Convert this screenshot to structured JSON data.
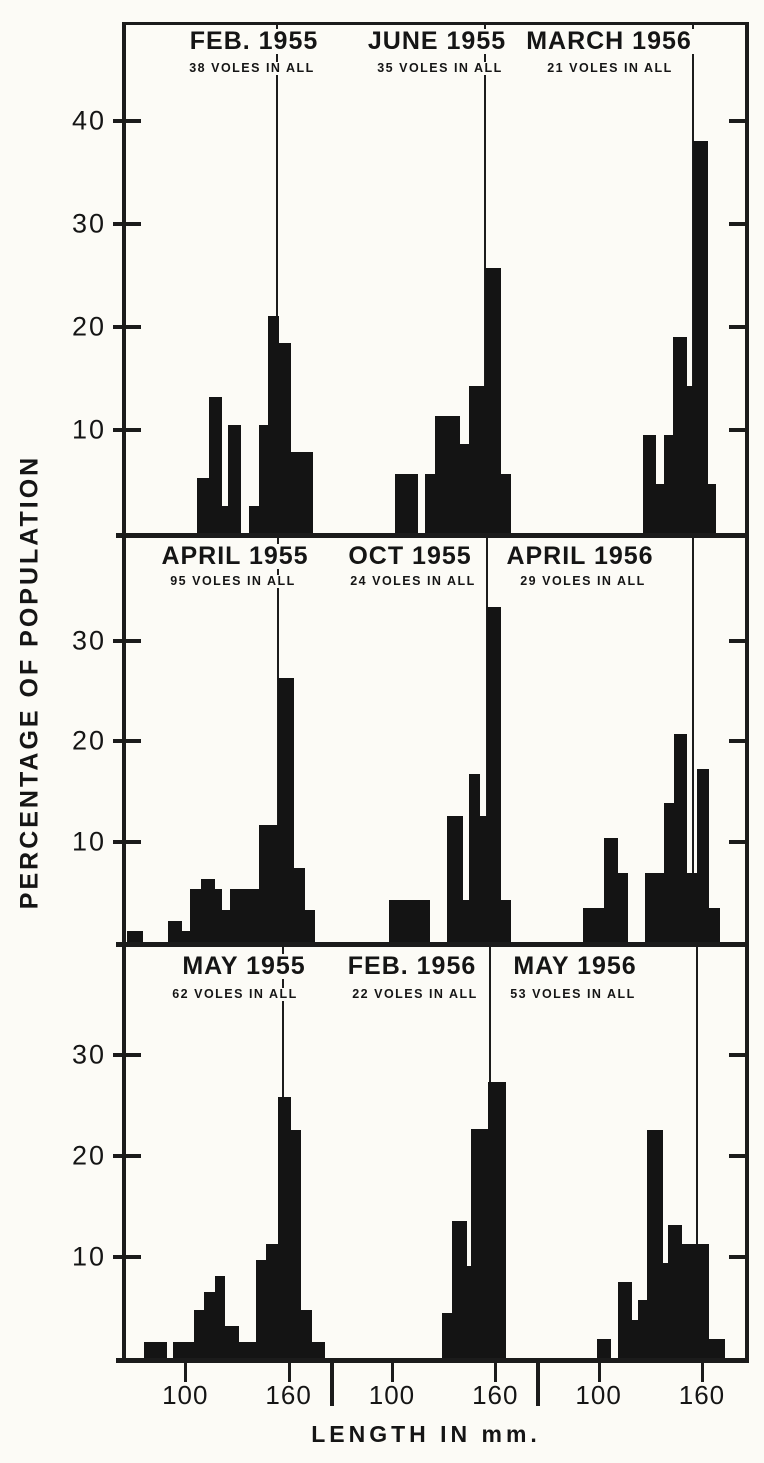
{
  "figure": {
    "paper_color": "#fcfbf6",
    "ink_color": "#161616"
  },
  "chart_data": {
    "type": "bar",
    "subtype": "histogram-grid-3x3",
    "title": "",
    "y_axis": {
      "label": "PERCENTAGE OF POPULATION"
    },
    "x_axis": {
      "label": "LENGTH IN mm.",
      "tick_values_mm": [
        100,
        160
      ],
      "mm_window": [
        65,
        185
      ]
    },
    "grid": "off",
    "legend": "none",
    "rows": [
      {
        "y_ticks": [
          10,
          20,
          30,
          40
        ],
        "ylim": [
          0,
          49.5
        ],
        "panels": [
          {
            "title": "FEB. 1955",
            "subtitle": "38 VOLES IN ALL",
            "n_voles": 38,
            "ref_mm": 153,
            "bars": [
              {
                "mm": [
                  107,
                  114
                ],
                "pct": 5.3
              },
              {
                "mm": [
                  114,
                  121
                ],
                "pct": 13.2
              },
              {
                "mm": [
                  121,
                  125
                ],
                "pct": 2.6
              },
              {
                "mm": [
                  125,
                  132
                ],
                "pct": 10.5
              },
              {
                "mm": [
                  137,
                  143
                ],
                "pct": 2.6
              },
              {
                "mm": [
                  143,
                  148
                ],
                "pct": 10.5
              },
              {
                "mm": [
                  148,
                  154
                ],
                "pct": 21.1
              },
              {
                "mm": [
                  154,
                  161
                ],
                "pct": 18.4
              },
              {
                "mm": [
                  161,
                  174
                ],
                "pct": 7.9
              }
            ]
          },
          {
            "title": "JUNE 1955",
            "subtitle": "35 VOLES IN ALL",
            "n_voles": 35,
            "ref_mm": 154,
            "bars": [
              {
                "mm": [
                  102,
                  115
                ],
                "pct": 5.7
              },
              {
                "mm": [
                  119,
                  125
                ],
                "pct": 5.7
              },
              {
                "mm": [
                  125,
                  139
                ],
                "pct": 11.4
              },
              {
                "mm": [
                  139,
                  145
                ],
                "pct": 8.6
              },
              {
                "mm": [
                  145,
                  154
                ],
                "pct": 14.3
              },
              {
                "mm": [
                  154,
                  163
                ],
                "pct": 25.7
              },
              {
                "mm": [
                  163,
                  169
                ],
                "pct": 5.7
              }
            ]
          },
          {
            "title": "MARCH 1956",
            "subtitle": "21 VOLES IN ALL",
            "n_voles": 21,
            "ref_mm": 155,
            "bars": [
              {
                "mm": [
                  126,
                  133
                ],
                "pct": 9.5
              },
              {
                "mm": [
                  133,
                  138
                ],
                "pct": 4.8
              },
              {
                "mm": [
                  138,
                  143
                ],
                "pct": 9.5
              },
              {
                "mm": [
                  143,
                  151
                ],
                "pct": 19.0
              },
              {
                "mm": [
                  151,
                  155
                ],
                "pct": 14.3
              },
              {
                "mm": [
                  155,
                  163
                ],
                "pct": 38.1
              },
              {
                "mm": [
                  163,
                  168
                ],
                "pct": 4.8
              }
            ]
          }
        ]
      },
      {
        "y_ticks": [
          10,
          20,
          30
        ],
        "ylim": [
          0,
          40
        ],
        "panels": [
          {
            "title": "APRIL 1955",
            "subtitle": "95 VOLES IN ALL",
            "n_voles": 95,
            "ref_mm": 154,
            "bars": [
              {
                "mm": [
                  66,
                  75
                ],
                "pct": 1.1
              },
              {
                "mm": [
                  90,
                  98
                ],
                "pct": 2.1
              },
              {
                "mm": [
                  98,
                  103
                ],
                "pct": 1.1
              },
              {
                "mm": [
                  103,
                  109
                ],
                "pct": 5.3
              },
              {
                "mm": [
                  109,
                  117
                ],
                "pct": 6.3
              },
              {
                "mm": [
                  117,
                  121
                ],
                "pct": 5.3
              },
              {
                "mm": [
                  121,
                  126
                ],
                "pct": 3.2
              },
              {
                "mm": [
                  126,
                  143
                ],
                "pct": 5.3
              },
              {
                "mm": [
                  143,
                  154
                ],
                "pct": 11.6
              },
              {
                "mm": [
                  154,
                  163
                ],
                "pct": 26.3
              },
              {
                "mm": [
                  163,
                  169
                ],
                "pct": 7.4
              },
              {
                "mm": [
                  169,
                  175
                ],
                "pct": 3.2
              }
            ]
          },
          {
            "title": "OCT 1955",
            "subtitle": "24 VOLES IN ALL",
            "n_voles": 24,
            "ref_mm": 155,
            "bars": [
              {
                "mm": [
                  98,
                  122
                ],
                "pct": 4.2
              },
              {
                "mm": [
                  132,
                  141
                ],
                "pct": 12.5
              },
              {
                "mm": [
                  141,
                  145
                ],
                "pct": 4.2
              },
              {
                "mm": [
                  145,
                  151
                ],
                "pct": 16.7
              },
              {
                "mm": [
                  151,
                  155
                ],
                "pct": 12.5
              },
              {
                "mm": [
                  155,
                  163
                ],
                "pct": 33.3
              },
              {
                "mm": [
                  163,
                  169
                ],
                "pct": 4.2
              }
            ]
          },
          {
            "title": "APRIL 1956",
            "subtitle": "29 VOLES IN ALL",
            "n_voles": 29,
            "ref_mm": 155,
            "bars": [
              {
                "mm": [
                  91,
                  103
                ],
                "pct": 3.4
              },
              {
                "mm": [
                  103,
                  111
                ],
                "pct": 10.3
              },
              {
                "mm": [
                  111,
                  117
                ],
                "pct": 6.9
              },
              {
                "mm": [
                  127,
                  138
                ],
                "pct": 6.9
              },
              {
                "mm": [
                  138,
                  144
                ],
                "pct": 13.8
              },
              {
                "mm": [
                  144,
                  151
                ],
                "pct": 20.7
              },
              {
                "mm": [
                  151,
                  157
                ],
                "pct": 6.9
              },
              {
                "mm": [
                  157,
                  164
                ],
                "pct": 17.2
              },
              {
                "mm": [
                  164,
                  170
                ],
                "pct": 3.4
              }
            ]
          }
        ]
      },
      {
        "y_ticks": [
          10,
          20,
          30
        ],
        "ylim": [
          0,
          40
        ],
        "panels": [
          {
            "title": "MAY 1955",
            "subtitle": "62 VOLES IN ALL",
            "n_voles": 62,
            "ref_mm": 157,
            "bars": [
              {
                "mm": [
                  76,
                  83
                ],
                "pct": 1.6
              },
              {
                "mm": [
                  83,
                  89
                ],
                "pct": 1.6
              },
              {
                "mm": [
                  93,
                  100
                ],
                "pct": 1.6
              },
              {
                "mm": [
                  100,
                  105
                ],
                "pct": 1.6
              },
              {
                "mm": [
                  105,
                  111
                ],
                "pct": 4.8
              },
              {
                "mm": [
                  111,
                  117
                ],
                "pct": 6.5
              },
              {
                "mm": [
                  117,
                  123
                ],
                "pct": 8.1
              },
              {
                "mm": [
                  123,
                  131
                ],
                "pct": 3.2
              },
              {
                "mm": [
                  131,
                  141
                ],
                "pct": 1.6
              },
              {
                "mm": [
                  141,
                  147
                ],
                "pct": 9.7
              },
              {
                "mm": [
                  147,
                  154
                ],
                "pct": 11.3
              },
              {
                "mm": [
                  154,
                  161
                ],
                "pct": 25.8
              },
              {
                "mm": [
                  161,
                  167
                ],
                "pct": 22.6
              },
              {
                "mm": [
                  167,
                  173
                ],
                "pct": 4.8
              },
              {
                "mm": [
                  173,
                  181
                ],
                "pct": 1.6
              }
            ]
          },
          {
            "title": "FEB. 1956",
            "subtitle": "22 VOLES IN ALL",
            "n_voles": 22,
            "ref_mm": 157,
            "bars": [
              {
                "mm": [
                  129,
                  135
                ],
                "pct": 4.5
              },
              {
                "mm": [
                  135,
                  143
                ],
                "pct": 13.6
              },
              {
                "mm": [
                  143,
                  146
                ],
                "pct": 9.1
              },
              {
                "mm": [
                  146,
                  156
                ],
                "pct": 22.7
              },
              {
                "mm": [
                  156,
                  166
                ],
                "pct": 27.3
              }
            ]
          },
          {
            "title": "MAY 1956",
            "subtitle": "53 VOLES IN ALL",
            "n_voles": 53,
            "ref_mm": 157,
            "bars": [
              {
                "mm": [
                  99,
                  107
                ],
                "pct": 1.9
              },
              {
                "mm": [
                  111,
                  119
                ],
                "pct": 7.5
              },
              {
                "mm": [
                  119,
                  123
                ],
                "pct": 3.8
              },
              {
                "mm": [
                  123,
                  128
                ],
                "pct": 5.7
              },
              {
                "mm": [
                  128,
                  137
                ],
                "pct": 22.6
              },
              {
                "mm": [
                  137,
                  140
                ],
                "pct": 9.4
              },
              {
                "mm": [
                  140,
                  148
                ],
                "pct": 13.2
              },
              {
                "mm": [
                  148,
                  164
                ],
                "pct": 11.3
              },
              {
                "mm": [
                  164,
                  173
                ],
                "pct": 1.9
              }
            ]
          }
        ]
      }
    ]
  }
}
